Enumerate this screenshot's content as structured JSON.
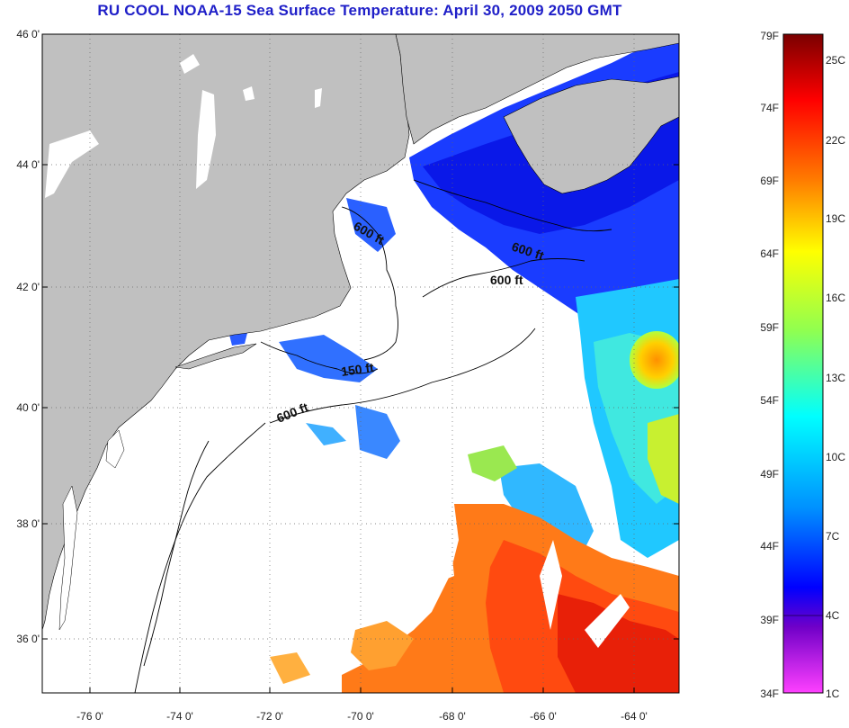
{
  "title": "RU COOL  NOAA-15  Sea Surface Temperature:  April 30, 2009 2050 GMT",
  "map": {
    "lat_ticks": [
      "46 0'",
      "44 0'",
      "42 0'",
      "40 0'",
      "38 0'",
      "36 0'"
    ],
    "lon_ticks": [
      "-76 0'",
      "-74 0'",
      "-72 0'",
      "-70 0'",
      "-68 0'",
      "-66 0'",
      "-64 0'"
    ],
    "contour_labels": [
      "600 ft",
      "600 ft",
      "600 ft",
      "150 ft",
      "600 ft"
    ],
    "colors": {
      "land": "#c0c0c0",
      "no_data": "#ffffff",
      "coast": "#000000",
      "grid": "#555555"
    }
  },
  "colorbar": {
    "fahrenheit_labels": [
      "79F",
      "74F",
      "69F",
      "64F",
      "59F",
      "54F",
      "49F",
      "44F",
      "39F",
      "34F"
    ],
    "celsius_labels": [
      "25C",
      "22C",
      "19C",
      "16C",
      "13C",
      "10C",
      "7C",
      "4C",
      "1C"
    ],
    "gradient_colors": [
      "#8b0000",
      "#ff0000",
      "#ff8000",
      "#ffff00",
      "#80ff40",
      "#00ffff",
      "#0080ff",
      "#0000ff",
      "#8000c0",
      "#ff40ff"
    ]
  }
}
